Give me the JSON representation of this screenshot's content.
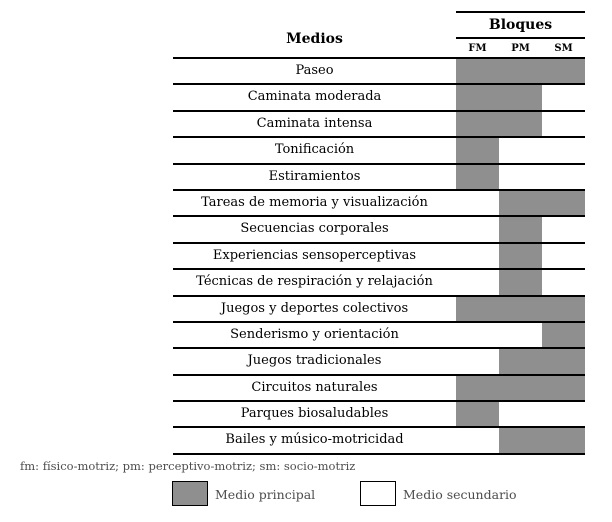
{
  "table": {
    "medios_header": "Medios",
    "bloques_header": "Bloques",
    "columns": [
      "FM",
      "PM",
      "SM"
    ],
    "rows": [
      {
        "label": "Paseo",
        "fm": true,
        "pm": true,
        "sm": true
      },
      {
        "label": "Caminata moderada",
        "fm": true,
        "pm": true,
        "sm": false
      },
      {
        "label": "Caminata intensa",
        "fm": true,
        "pm": true,
        "sm": false
      },
      {
        "label": "Tonificación",
        "fm": true,
        "pm": false,
        "sm": false
      },
      {
        "label": "Estiramientos",
        "fm": true,
        "pm": false,
        "sm": false
      },
      {
        "label": "Tareas de memoria y visualización",
        "fm": false,
        "pm": true,
        "sm": true
      },
      {
        "label": "Secuencias corporales",
        "fm": false,
        "pm": true,
        "sm": false
      },
      {
        "label": "Experiencias sensoperceptivas",
        "fm": false,
        "pm": true,
        "sm": false
      },
      {
        "label": "Técnicas de respiración y relajación",
        "fm": false,
        "pm": true,
        "sm": false
      },
      {
        "label": "Juegos y deportes colectivos",
        "fm": true,
        "pm": true,
        "sm": true
      },
      {
        "label": "Senderismo y orientación",
        "fm": false,
        "pm": false,
        "sm": true
      },
      {
        "label": "Juegos tradicionales",
        "fm": false,
        "pm": true,
        "sm": true
      },
      {
        "label": "Circuitos naturales",
        "fm": true,
        "pm": true,
        "sm": true
      },
      {
        "label": "Parques biosaludables",
        "fm": true,
        "pm": false,
        "sm": false
      },
      {
        "label": "Bailes y músico-motricidad",
        "fm": false,
        "pm": true,
        "sm": true
      }
    ]
  },
  "footnote": "fm: físico-motriz; pm: perceptivo-motriz; sm: socio-motriz",
  "legend": {
    "principal_label": "Medio principal",
    "secundario_label": "Medio secundario"
  },
  "colors": {
    "principal_fill": "#8f8f8f",
    "secundario_fill": "#ffffff",
    "line": "#000000",
    "note_text": "#4d4d4d"
  },
  "chart_data": {
    "type": "table",
    "title": "Medios",
    "column_group": "Bloques",
    "columns": [
      "FM",
      "PM",
      "SM"
    ],
    "legend": [
      "Medio principal",
      "Medio secundario"
    ],
    "rows": [
      {
        "medio": "Paseo",
        "FM": "principal",
        "PM": "principal",
        "SM": "principal"
      },
      {
        "medio": "Caminata moderada",
        "FM": "principal",
        "PM": "principal",
        "SM": "secundario"
      },
      {
        "medio": "Caminata intensa",
        "FM": "principal",
        "PM": "principal",
        "SM": "secundario"
      },
      {
        "medio": "Tonificación",
        "FM": "principal",
        "PM": "secundario",
        "SM": "secundario"
      },
      {
        "medio": "Estiramientos",
        "FM": "principal",
        "PM": "secundario",
        "SM": "secundario"
      },
      {
        "medio": "Tareas de memoria y visualización",
        "FM": "secundario",
        "PM": "principal",
        "SM": "principal"
      },
      {
        "medio": "Secuencias corporales",
        "FM": "secundario",
        "PM": "principal",
        "SM": "secundario"
      },
      {
        "medio": "Experiencias sensoperceptivas",
        "FM": "secundario",
        "PM": "principal",
        "SM": "secundario"
      },
      {
        "medio": "Técnicas de respiración y relajación",
        "FM": "secundario",
        "PM": "principal",
        "SM": "secundario"
      },
      {
        "medio": "Juegos y deportes colectivos",
        "FM": "principal",
        "PM": "principal",
        "SM": "principal"
      },
      {
        "medio": "Senderismo y orientación",
        "FM": "secundario",
        "PM": "secundario",
        "SM": "principal"
      },
      {
        "medio": "Juegos tradicionales",
        "FM": "secundario",
        "PM": "principal",
        "SM": "principal"
      },
      {
        "medio": "Circuitos naturales",
        "FM": "principal",
        "PM": "principal",
        "SM": "principal"
      },
      {
        "medio": "Parques biosaludables",
        "FM": "principal",
        "PM": "secundario",
        "SM": "secundario"
      },
      {
        "medio": "Bailes y músico-motricidad",
        "FM": "secundario",
        "PM": "principal",
        "SM": "principal"
      }
    ]
  }
}
